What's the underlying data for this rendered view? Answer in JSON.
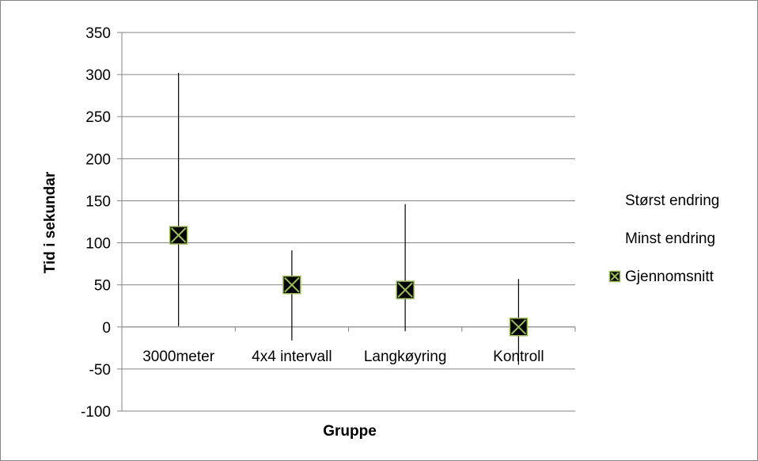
{
  "chart_data": {
    "type": "stock-hilo",
    "xlabel": "Gruppe",
    "ylabel": "Tid i sekundar",
    "ylim": [
      -100,
      350
    ],
    "ytick_step": 50,
    "yticks": [
      "350",
      "300",
      "250",
      "200",
      "150",
      "100",
      "50",
      "0",
      "-50",
      "-100"
    ],
    "grid": true,
    "categories": [
      "3000meter",
      "4x4 intervall",
      "Langkøyring",
      "Kontroll"
    ],
    "series": [
      {
        "name": "Størst endring",
        "values": [
          302,
          91,
          146,
          57
        ]
      },
      {
        "name": "Minst endring",
        "values": [
          1,
          -16,
          -5,
          -45
        ]
      },
      {
        "name": "Gjennomsnitt",
        "values": [
          109,
          50,
          44,
          0
        ]
      }
    ],
    "legend_position": "right",
    "colors": {
      "line": "#000000",
      "grid": "#868686",
      "marker_fill": "#000000",
      "marker_cross": "#9BBB59"
    }
  }
}
